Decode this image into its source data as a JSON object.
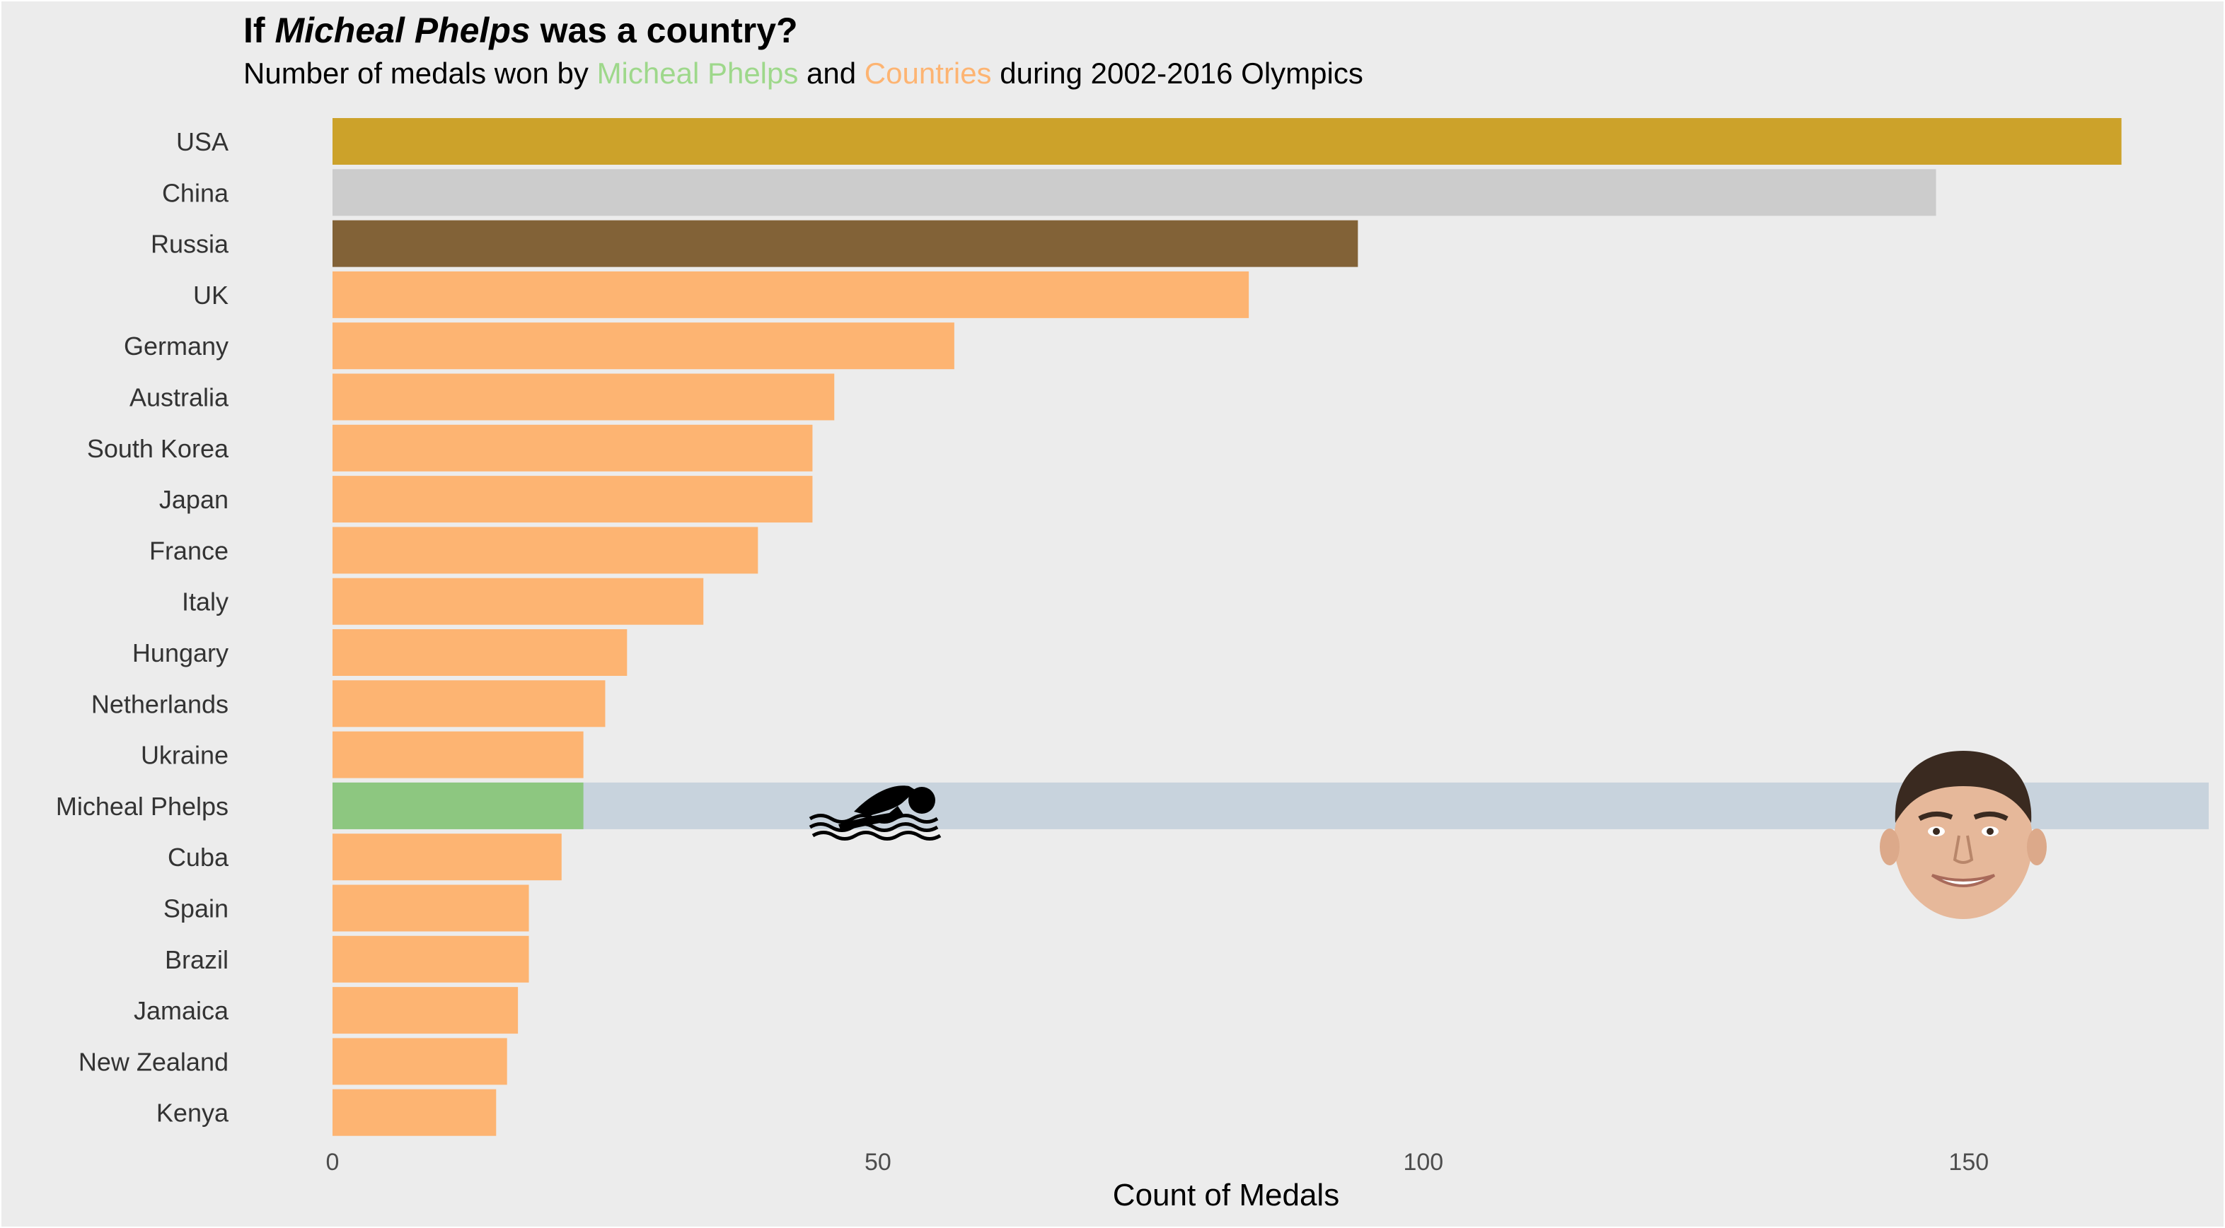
{
  "chart_data": {
    "type": "bar",
    "orientation": "horizontal",
    "title": {
      "prefix": "If ",
      "emphasis": "Micheal Phelps",
      "suffix": " was a country?"
    },
    "subtitle": {
      "part1": "Number of medals won by ",
      "highlight1": "Micheal Phelps",
      "part2": " and ",
      "highlight2": "Countries",
      "part3": " during 2002-2016 Olympics"
    },
    "xlabel": "Count of Medals",
    "ylabel": "",
    "xlim": [
      0,
      172
    ],
    "xticks": [
      0,
      50,
      100,
      150
    ],
    "grid": false,
    "categories": [
      "USA",
      "China",
      "Russia",
      "UK",
      "Germany",
      "Australia",
      "South Korea",
      "Japan",
      "France",
      "Italy",
      "Hungary",
      "Netherlands",
      "Ukraine",
      "Micheal Phelps",
      "Cuba",
      "Spain",
      "Brazil",
      "Jamaica",
      "New Zealand",
      "Kenya"
    ],
    "values": [
      164,
      147,
      94,
      84,
      57,
      46,
      44,
      44,
      39,
      34,
      27,
      25,
      23,
      23,
      21,
      18,
      18,
      17,
      16,
      15
    ],
    "highlight_category": "Micheal Phelps",
    "colors": {
      "gold": "#cca22a",
      "silver": "#cccccc",
      "bronze": "#826237",
      "country": "#fdb472",
      "phelps": "#8dc780",
      "phelps_band": "#c8d3dd",
      "background": "#ececec",
      "subtitle_green": "#9ed88b",
      "subtitle_orange": "#fdb472"
    },
    "icons": [
      "swimmer-icon",
      "phelps-face-icon"
    ]
  }
}
